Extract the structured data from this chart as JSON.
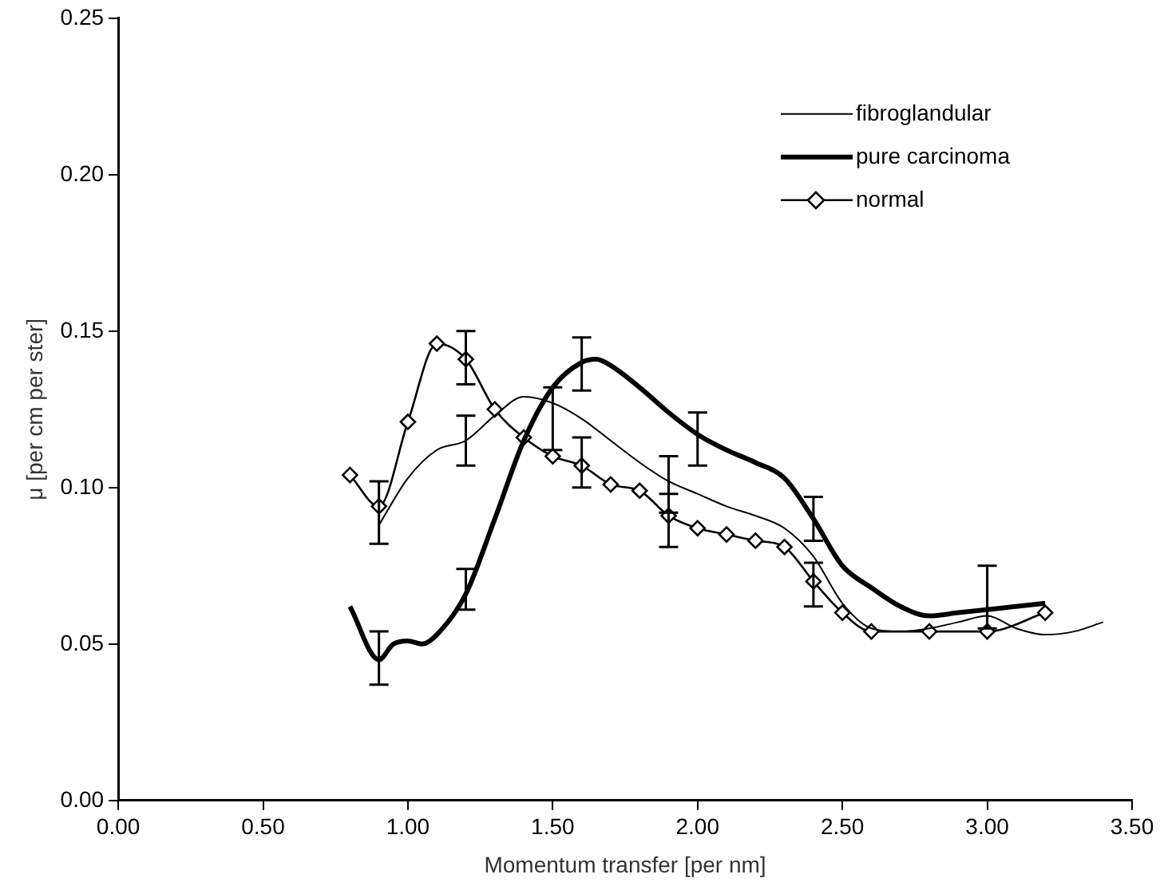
{
  "chart_data": {
    "type": "line",
    "xlabel": "Momentum transfer [per nm]",
    "ylabel": "μ [per cm per ster]",
    "xlim": [
      0,
      3.5
    ],
    "ylim": [
      0,
      0.25
    ],
    "xticks": [
      {
        "value": 0,
        "label": "0.00"
      },
      {
        "value": 0.5,
        "label": "0.50"
      },
      {
        "value": 1,
        "label": "1.00"
      },
      {
        "value": 1.5,
        "label": "1.50"
      },
      {
        "value": 2,
        "label": "2.00"
      },
      {
        "value": 2.5,
        "label": "2.50"
      },
      {
        "value": 3,
        "label": "3.00"
      },
      {
        "value": 3.5,
        "label": "3.50"
      }
    ],
    "yticks": [
      {
        "value": 0,
        "label": "0.00"
      },
      {
        "value": 0.05,
        "label": "0.05"
      },
      {
        "value": 0.1,
        "label": "0.10"
      },
      {
        "value": 0.15,
        "label": "0.15"
      },
      {
        "value": 0.2,
        "label": "0.20"
      },
      {
        "value": 0.25,
        "label": "0.25"
      }
    ],
    "grid": false,
    "legend": "top right",
    "series": [
      {
        "name": "fibroglandular",
        "color": "#000000",
        "marker": "none",
        "x": [
          0.9,
          1.0,
          1.1,
          1.2,
          1.3,
          1.4,
          1.5,
          1.6,
          1.7,
          1.8,
          1.9,
          2.0,
          2.1,
          2.2,
          2.3,
          2.4,
          2.5,
          2.6,
          2.7,
          2.8,
          2.9,
          3.0,
          3.1,
          3.2,
          3.3,
          3.4
        ],
        "values": [
          0.088,
          0.103,
          0.112,
          0.115,
          0.123,
          0.129,
          0.127,
          0.122,
          0.115,
          0.108,
          0.102,
          0.098,
          0.094,
          0.091,
          0.087,
          0.078,
          0.063,
          0.055,
          0.054,
          0.055,
          0.057,
          0.059,
          0.055,
          0.053,
          0.054,
          0.057
        ],
        "errors": [
          null,
          null,
          null,
          [
            0.107,
            0.123
          ],
          null,
          null,
          [
            0.112,
            0.132
          ],
          null,
          null,
          null,
          [
            0.092,
            0.11
          ],
          null,
          null,
          null,
          null,
          [
            0.062,
            0.076
          ],
          null,
          null,
          null,
          null,
          null,
          null,
          null,
          null,
          null,
          null
        ]
      },
      {
        "name": "pure carcinoma",
        "color": "#000000",
        "marker": "none",
        "x": [
          0.8,
          0.9,
          0.95,
          1.0,
          1.05,
          1.1,
          1.2,
          1.3,
          1.4,
          1.5,
          1.6,
          1.65,
          1.7,
          1.8,
          1.9,
          2.0,
          2.1,
          2.2,
          2.3,
          2.4,
          2.5,
          2.6,
          2.7,
          2.8,
          2.9,
          3.0,
          3.1,
          3.2
        ],
        "values": [
          0.062,
          0.045,
          0.05,
          0.051,
          0.05,
          0.053,
          0.066,
          0.09,
          0.115,
          0.132,
          0.14,
          0.141,
          0.139,
          0.132,
          0.124,
          0.117,
          0.112,
          0.108,
          0.103,
          0.09,
          0.075,
          0.068,
          0.062,
          0.059,
          0.06,
          0.061,
          0.062,
          0.063
        ],
        "errors": [
          null,
          [
            0.037,
            0.054
          ],
          null,
          null,
          null,
          null,
          [
            0.061,
            0.074
          ],
          null,
          null,
          null,
          [
            0.131,
            0.148
          ],
          null,
          null,
          null,
          null,
          [
            0.107,
            0.124
          ],
          null,
          null,
          null,
          [
            0.083,
            0.097
          ],
          null,
          null,
          null,
          null,
          null,
          [
            0.055,
            0.075
          ],
          null,
          null
        ]
      },
      {
        "name": "normal",
        "color": "#000000",
        "marker": "diamond",
        "x": [
          0.8,
          0.9,
          1.0,
          1.1,
          1.2,
          1.3,
          1.4,
          1.5,
          1.6,
          1.7,
          1.8,
          1.9,
          2.0,
          2.1,
          2.2,
          2.3,
          2.4,
          2.5,
          2.6,
          2.8,
          3.0,
          3.2
        ],
        "values": [
          0.104,
          0.094,
          0.121,
          0.146,
          0.141,
          0.125,
          0.116,
          0.11,
          0.107,
          0.101,
          0.099,
          0.091,
          0.087,
          0.085,
          0.083,
          0.081,
          0.07,
          0.06,
          0.054,
          0.054,
          0.054,
          0.06
        ],
        "errors": [
          null,
          [
            0.082,
            0.102
          ],
          null,
          null,
          [
            0.133,
            0.15
          ],
          null,
          null,
          null,
          [
            0.1,
            0.116
          ],
          null,
          null,
          [
            0.081,
            0.098
          ],
          null,
          null,
          null,
          null,
          null,
          null,
          null,
          null,
          null,
          null
        ]
      }
    ]
  }
}
